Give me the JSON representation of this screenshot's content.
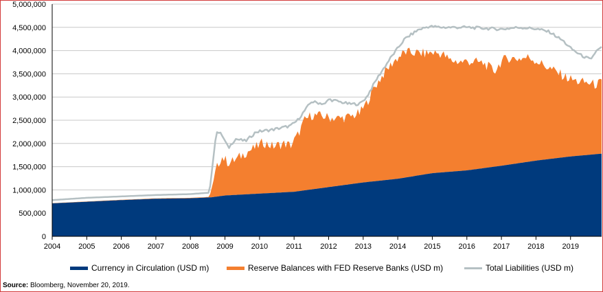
{
  "chart_data": {
    "type": "area",
    "x_ticks": [
      "2004",
      "2005",
      "2006",
      "2007",
      "2008",
      "2009",
      "2010",
      "2011",
      "2012",
      "2013",
      "2014",
      "2015",
      "2016",
      "2017",
      "2018",
      "2019"
    ],
    "y_ticks": [
      "0",
      "500,000",
      "1,000,000",
      "1,500,000",
      "2,000,000",
      "2,500,000",
      "3,000,000",
      "3,500,000",
      "4,000,000",
      "4,500,000",
      "5,000,000"
    ],
    "ylim": [
      0,
      5000000
    ],
    "xlim": [
      2004.0,
      2019.9
    ],
    "grid": true,
    "legend_position": "bottom",
    "series": [
      {
        "name": "Currency in Circulation (USD m)",
        "kind": "stacked-area",
        "color": "#003a7d",
        "x": [
          2004.0,
          2005.0,
          2006.0,
          2007.0,
          2008.0,
          2008.6,
          2009.0,
          2010.0,
          2011.0,
          2012.0,
          2013.0,
          2014.0,
          2015.0,
          2016.0,
          2017.0,
          2018.0,
          2019.0,
          2019.9
        ],
        "values": [
          710000,
          745000,
          780000,
          810000,
          820000,
          840000,
          880000,
          920000,
          960000,
          1060000,
          1160000,
          1240000,
          1360000,
          1420000,
          1520000,
          1630000,
          1720000,
          1780000
        ]
      },
      {
        "name": "Reserve Balances with FED Reserve Banks (USD m)",
        "kind": "stacked-area",
        "color": "#f47f2f",
        "x": [
          2004.0,
          2008.55,
          2008.65,
          2008.75,
          2008.9,
          2009.1,
          2009.3,
          2009.6,
          2009.9,
          2010.1,
          2010.4,
          2010.7,
          2010.9,
          2011.1,
          2011.3,
          2011.5,
          2011.8,
          2012.0,
          2012.3,
          2012.6,
          2012.9,
          2013.1,
          2013.3,
          2013.6,
          2013.9,
          2014.2,
          2014.5,
          2014.8,
          2015.0,
          2015.3,
          2015.5,
          2015.8,
          2016.0,
          2016.3,
          2016.5,
          2016.8,
          2017.0,
          2017.2,
          2017.5,
          2017.8,
          2018.0,
          2018.3,
          2018.6,
          2018.9,
          2019.2,
          2019.5,
          2019.7,
          2019.9
        ],
        "values": [
          5000,
          10000,
          300000,
          600000,
          850000,
          700000,
          750000,
          900000,
          1000000,
          1100000,
          1000000,
          1050000,
          1000000,
          1200000,
          1500000,
          1600000,
          1550000,
          1500000,
          1450000,
          1450000,
          1500000,
          1700000,
          2000000,
          2300000,
          2550000,
          2700000,
          2650000,
          2600000,
          2600000,
          2550000,
          2400000,
          2350000,
          2350000,
          2300000,
          2250000,
          2050000,
          2250000,
          2300000,
          2250000,
          2250000,
          2150000,
          2000000,
          1850000,
          1700000,
          1600000,
          1550000,
          1500000,
          1530000
        ]
      },
      {
        "name": "Total Liabilities (USD m)",
        "kind": "line",
        "color": "#b5c0c3",
        "x": [
          2004.0,
          2005.0,
          2006.0,
          2007.0,
          2008.0,
          2008.55,
          2008.75,
          2008.9,
          2009.1,
          2009.3,
          2009.6,
          2009.9,
          2010.4,
          2010.9,
          2011.1,
          2011.3,
          2011.5,
          2011.9,
          2012.0,
          2012.3,
          2012.6,
          2012.9,
          2013.1,
          2013.4,
          2013.8,
          2014.2,
          2014.6,
          2014.9,
          2015.3,
          2015.7,
          2016.0,
          2016.5,
          2017.0,
          2017.5,
          2018.0,
          2018.4,
          2018.8,
          2019.0,
          2019.3,
          2019.6,
          2019.75,
          2019.9
        ],
        "values": [
          780000,
          830000,
          860000,
          890000,
          910000,
          940000,
          2250000,
          2200000,
          1900000,
          2100000,
          2050000,
          2250000,
          2300000,
          2380000,
          2500000,
          2700000,
          2900000,
          2850000,
          2950000,
          2900000,
          2850000,
          2850000,
          3000000,
          3400000,
          3850000,
          4250000,
          4450000,
          4520000,
          4500000,
          4500000,
          4500000,
          4480000,
          4460000,
          4500000,
          4470000,
          4400000,
          4200000,
          4050000,
          3900000,
          3800000,
          4000000,
          4080000
        ]
      }
    ]
  },
  "legend": {
    "currency": "Currency in Circulation (USD m)",
    "reserves": "Reserve Balances with FED Reserve Banks (USD m)",
    "liabilities": "Total Liabilities (USD m)"
  },
  "source": {
    "label": "Source:",
    "text": " Bloomberg, November 20, 2019."
  }
}
